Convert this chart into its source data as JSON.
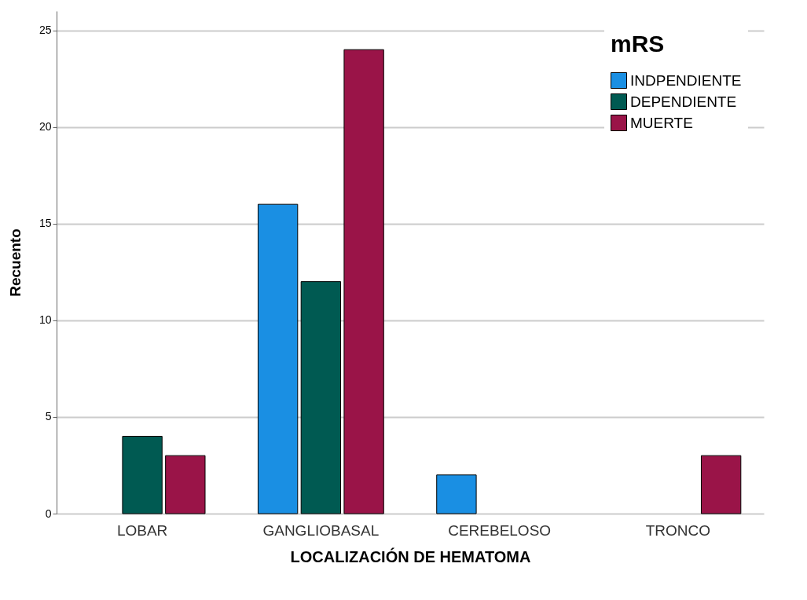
{
  "chart_data": {
    "type": "bar",
    "xlabel": "LOCALIZACIÓN DE HEMATOMA",
    "ylabel": "Recuento",
    "legend_title": "mRS",
    "categories": [
      "LOBAR",
      "GANGLIOBASAL",
      "CEREBELOSO",
      "TRONCO"
    ],
    "series": [
      {
        "name": "INDPENDIENTE",
        "color": "#1a8fe3",
        "values": [
          null,
          16,
          2,
          null
        ]
      },
      {
        "name": "DEPENDIENTE",
        "color": "#005a52",
        "values": [
          4,
          12,
          null,
          null
        ]
      },
      {
        "name": "MUERTE",
        "color": "#9a1448",
        "values": [
          3,
          24,
          null,
          3
        ]
      }
    ],
    "ylim": [
      0,
      26
    ],
    "yticks": [
      0,
      5,
      10,
      15,
      20,
      25
    ],
    "grid": "y",
    "legend": "top right"
  }
}
